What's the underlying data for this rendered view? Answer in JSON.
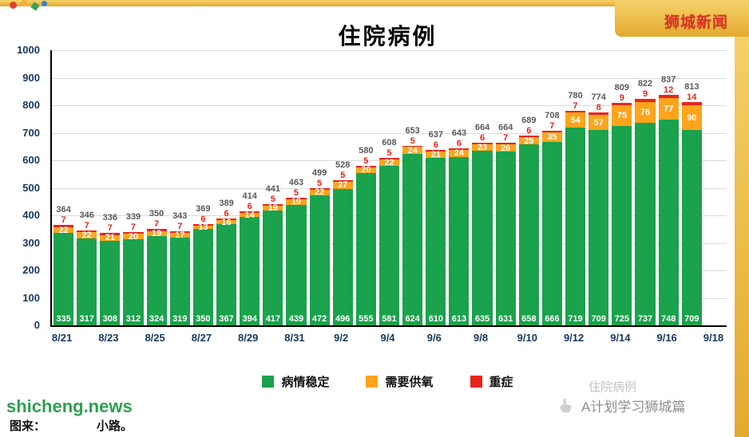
{
  "page": {
    "brand": "狮城新闻",
    "watermark_green": "shicheng.news",
    "caption_prefix": "图来：",
    "caption_suffix": "小路。",
    "watermark_faint": "住院病例",
    "account_name": "A计划学习狮城篇"
  },
  "chart_data": {
    "type": "bar",
    "stacked": true,
    "title": "住院病例",
    "xlabel": "",
    "ylabel": "",
    "ylim": [
      0,
      1000
    ],
    "y_ticks": [
      0,
      100,
      200,
      300,
      400,
      500,
      600,
      700,
      800,
      900,
      1000
    ],
    "grid": true,
    "legend_position": "bottom",
    "n_slots": 29,
    "x_tick_labels": [
      "8/21",
      "8/23",
      "8/25",
      "8/27",
      "8/29",
      "8/31",
      "9/2",
      "9/4",
      "9/6",
      "9/8",
      "9/10",
      "9/12",
      "9/14",
      "9/16",
      "9/18"
    ],
    "series": [
      {
        "name": "病情稳定",
        "color": "#1aa24c",
        "label_color": "#ffffff",
        "values": [
          335,
          317,
          308,
          312,
          324,
          319,
          350,
          367,
          394,
          417,
          439,
          472,
          496,
          555,
          581,
          624,
          610,
          613,
          635,
          631,
          658,
          666,
          719,
          709,
          725,
          737,
          748,
          709
        ]
      },
      {
        "name": "需要供氧",
        "color": "#ffa41c",
        "label_color": "#ffffff",
        "values": [
          22,
          22,
          21,
          20,
          19,
          17,
          13,
          16,
          14,
          19,
          19,
          22,
          27,
          20,
          22,
          24,
          21,
          24,
          23,
          26,
          25,
          35,
          54,
          57,
          75,
          76,
          77,
          90
        ]
      },
      {
        "name": "重症",
        "color": "#e8251d",
        "label_color": "#e8251d",
        "values": [
          7,
          7,
          7,
          7,
          7,
          7,
          6,
          6,
          6,
          5,
          5,
          5,
          5,
          5,
          5,
          5,
          6,
          6,
          6,
          7,
          6,
          7,
          7,
          8,
          9,
          9,
          12,
          14
        ]
      }
    ],
    "totals": [
      364,
      346,
      336,
      339,
      350,
      343,
      369,
      389,
      414,
      441,
      463,
      499,
      528,
      580,
      608,
      653,
      637,
      643,
      664,
      664,
      689,
      708,
      780,
      774,
      809,
      822,
      837,
      813
    ],
    "total_label_color": "#595959"
  }
}
